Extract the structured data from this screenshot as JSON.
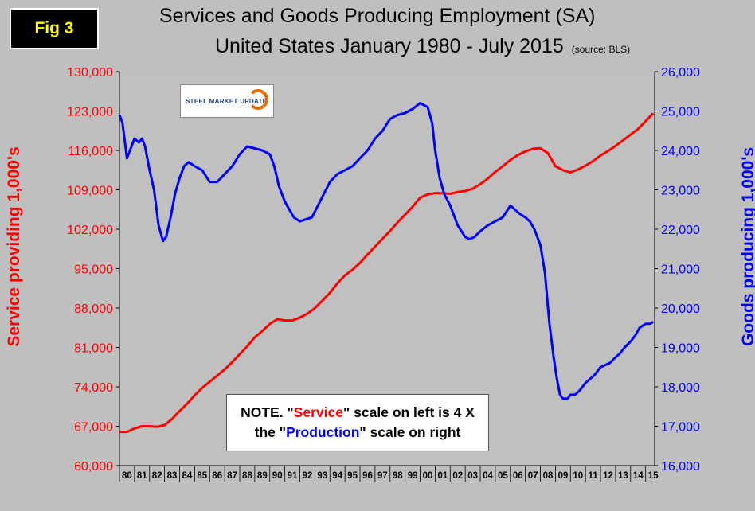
{
  "badge": "Fig 3",
  "title_line1": "Services and Goods Producing Employment (SA)",
  "title_line2": "United States January 1980 - July 2015",
  "source": "(source: BLS)",
  "logo_text": "STEEL MARKET UPDATE",
  "note": {
    "p1": "NOTE. \"",
    "w1": "Service",
    "p2": "\" scale on left  is 4 X",
    "p3": "the \"",
    "w2": "Production",
    "p4": "\" scale on right"
  },
  "colors": {
    "service": "#ff0000",
    "goods": "#0000ff",
    "plot_bg": "#c0c0c0",
    "page_bg": "#bfbfbf"
  },
  "chart_data": {
    "type": "line",
    "y_left": {
      "label": "Service providing 1,000's",
      "range": [
        60000,
        130000
      ],
      "ticks": [
        "60,000",
        "67,000",
        "74,000",
        "81,000",
        "88,000",
        "95,000",
        "102,000",
        "109,000",
        "116,000",
        "123,000",
        "130,000"
      ]
    },
    "y_right": {
      "label": "Goods producing 1,000's",
      "range": [
        16000,
        26000
      ],
      "ticks": [
        "16,000",
        "17,000",
        "18,000",
        "19,000",
        "20,000",
        "21,000",
        "22,000",
        "23,000",
        "24,000",
        "25,000",
        "26,000"
      ]
    },
    "x_ticks": [
      "80",
      "81",
      "82",
      "83",
      "84",
      "85",
      "86",
      "87",
      "88",
      "89",
      "90",
      "91",
      "92",
      "93",
      "94",
      "95",
      "96",
      "97",
      "98",
      "99",
      "00",
      "01",
      "02",
      "03",
      "04",
      "05",
      "06",
      "07",
      "08",
      "09",
      "10",
      "11",
      "12",
      "13",
      "14",
      "15"
    ],
    "x_range": [
      1980.0,
      2015.6
    ],
    "grid": false,
    "series": [
      {
        "axis": "left",
        "color": "#ff0000",
        "x": [
          1980.0,
          1980.5,
          1981.0,
          1981.5,
          1982.0,
          1982.5,
          1983.0,
          1983.5,
          1984.0,
          1984.5,
          1985.0,
          1985.5,
          1986.0,
          1986.5,
          1987.0,
          1987.5,
          1988.0,
          1988.5,
          1989.0,
          1989.5,
          1990.0,
          1990.5,
          1991.0,
          1991.5,
          1992.0,
          1992.5,
          1993.0,
          1993.5,
          1994.0,
          1994.5,
          1995.0,
          1995.5,
          1996.0,
          1996.5,
          1997.0,
          1997.5,
          1998.0,
          1998.5,
          1999.0,
          1999.5,
          2000.0,
          2000.5,
          2001.0,
          2001.5,
          2002.0,
          2002.5,
          2003.0,
          2003.5,
          2004.0,
          2004.5,
          2005.0,
          2005.5,
          2006.0,
          2006.5,
          2007.0,
          2007.5,
          2008.0,
          2008.5,
          2009.0,
          2009.5,
          2010.0,
          2010.5,
          2011.0,
          2011.5,
          2012.0,
          2012.5,
          2013.0,
          2013.5,
          2014.0,
          2014.5,
          2015.0,
          2015.5
        ],
        "y": [
          66000,
          66000,
          66600,
          67000,
          67000,
          66900,
          67200,
          68300,
          69700,
          71000,
          72500,
          73800,
          74900,
          76000,
          77100,
          78400,
          79800,
          81200,
          82800,
          83900,
          85200,
          86000,
          85800,
          85800,
          86300,
          87000,
          88000,
          89300,
          90700,
          92400,
          93800,
          94800,
          96000,
          97500,
          98900,
          100300,
          101700,
          103200,
          104600,
          106000,
          107600,
          108200,
          108400,
          108400,
          108300,
          108600,
          108800,
          109200,
          110000,
          111000,
          112200,
          113200,
          114300,
          115200,
          115800,
          116300,
          116400,
          115500,
          113200,
          112500,
          112100,
          112600,
          113300,
          114100,
          115100,
          115900,
          116800,
          117800,
          118800,
          119800,
          121200,
          122600
        ]
      },
      {
        "axis": "right",
        "color": "#0000ff",
        "x": [
          1980.0,
          1980.2,
          1980.5,
          1980.8,
          1981.0,
          1981.3,
          1981.5,
          1981.7,
          1982.0,
          1982.3,
          1982.6,
          1982.9,
          1983.1,
          1983.4,
          1983.7,
          1984.0,
          1984.3,
          1984.6,
          1985.0,
          1985.5,
          1986.0,
          1986.5,
          1987.0,
          1987.5,
          1988.0,
          1988.5,
          1989.0,
          1989.5,
          1990.0,
          1990.3,
          1990.6,
          1991.0,
          1991.3,
          1991.6,
          1992.0,
          1992.4,
          1992.8,
          1993.2,
          1993.6,
          1994.0,
          1994.5,
          1995.0,
          1995.5,
          1996.0,
          1996.5,
          1997.0,
          1997.5,
          1998.0,
          1998.5,
          1999.0,
          1999.5,
          2000.0,
          2000.5,
          2000.8,
          2001.0,
          2001.3,
          2001.6,
          2002.0,
          2002.5,
          2003.0,
          2003.3,
          2003.6,
          2004.0,
          2004.5,
          2005.0,
          2005.5,
          2006.0,
          2006.3,
          2006.6,
          2007.0,
          2007.3,
          2007.6,
          2008.0,
          2008.3,
          2008.6,
          2008.9,
          2009.1,
          2009.3,
          2009.5,
          2009.8,
          2010.0,
          2010.3,
          2010.6,
          2011.0,
          2011.3,
          2011.6,
          2012.0,
          2012.3,
          2012.6,
          2013.0,
          2013.3,
          2013.6,
          2014.0,
          2014.3,
          2014.6,
          2015.0,
          2015.3,
          2015.5
        ],
        "y": [
          24900,
          24700,
          23800,
          24100,
          24300,
          24200,
          24300,
          24100,
          23500,
          23000,
          22100,
          21700,
          21800,
          22300,
          22900,
          23300,
          23600,
          23700,
          23600,
          23500,
          23200,
          23200,
          23400,
          23600,
          23900,
          24100,
          24050,
          24000,
          23900,
          23600,
          23100,
          22700,
          22500,
          22300,
          22200,
          22250,
          22300,
          22600,
          22900,
          23200,
          23400,
          23500,
          23600,
          23800,
          24000,
          24300,
          24500,
          24800,
          24900,
          24950,
          25050,
          25200,
          25100,
          24700,
          24000,
          23300,
          22900,
          22600,
          22100,
          21800,
          21750,
          21800,
          21950,
          22100,
          22200,
          22300,
          22600,
          22500,
          22400,
          22300,
          22200,
          22000,
          21600,
          20900,
          19600,
          18700,
          18200,
          17800,
          17700,
          17700,
          17800,
          17800,
          17900,
          18100,
          18200,
          18300,
          18500,
          18550,
          18600,
          18750,
          18850,
          19000,
          19150,
          19300,
          19500,
          19600,
          19600,
          19650
        ]
      }
    ]
  }
}
